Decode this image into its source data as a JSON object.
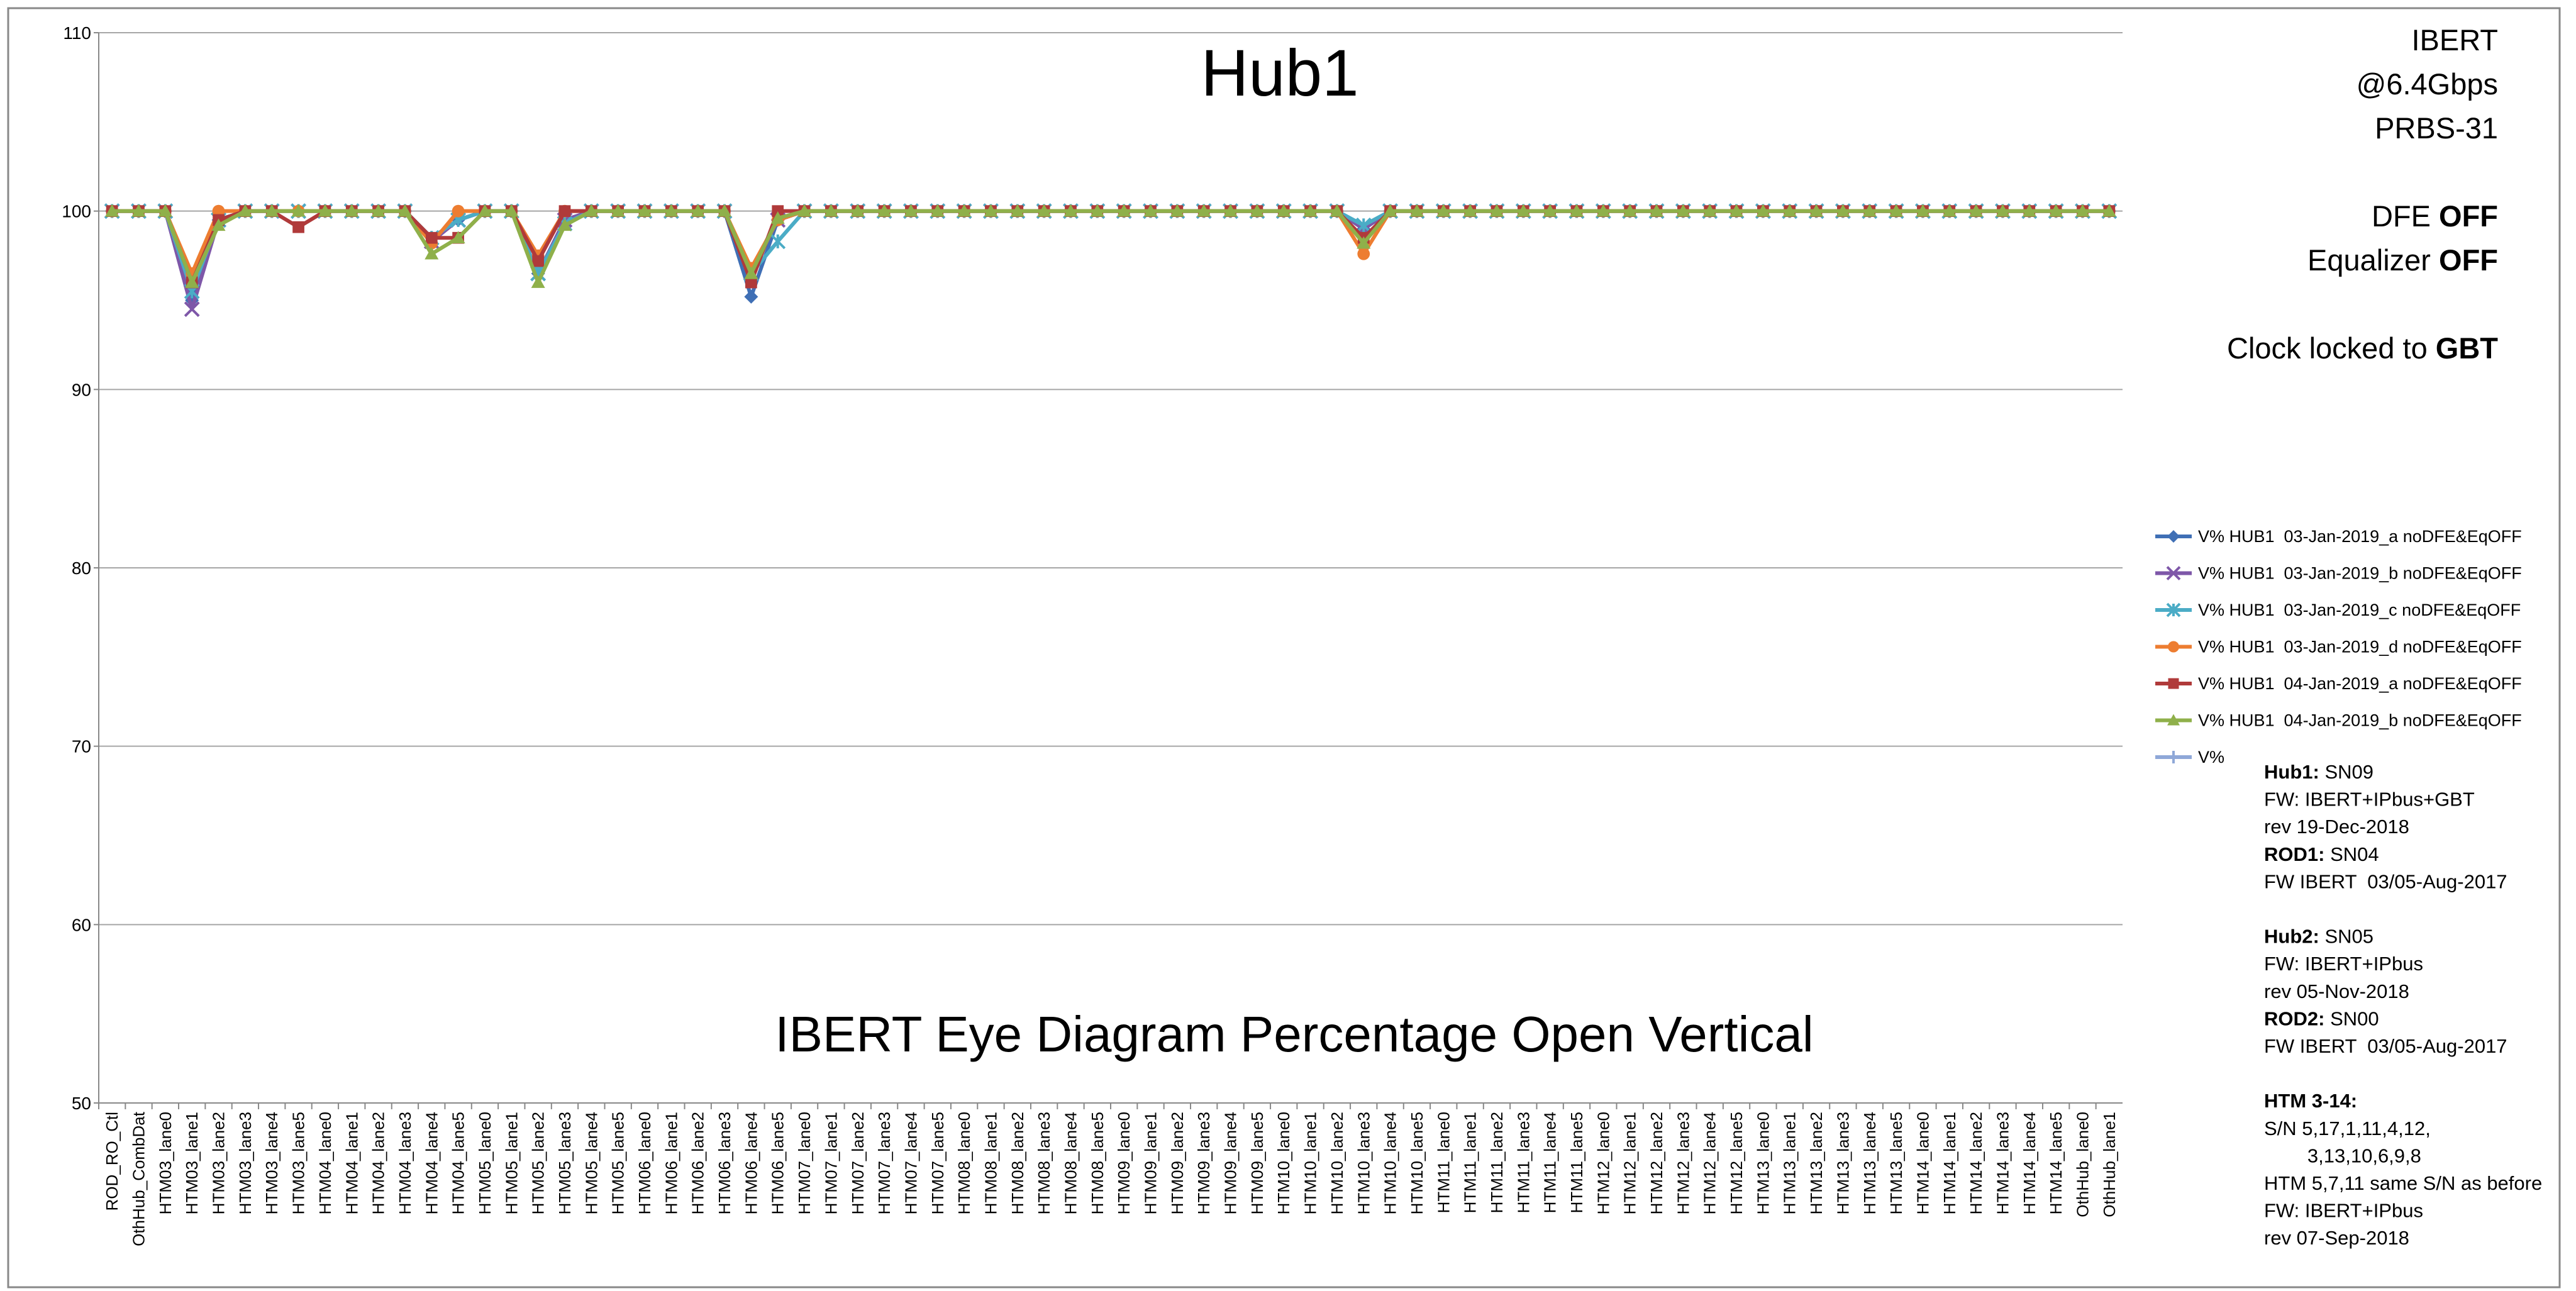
{
  "chart_data": {
    "type": "line",
    "title": "Hub1",
    "x_label": "IBERT Eye Diagram Percentage Open Vertical",
    "categories": [
      "ROD_RO_Ctl",
      "OthHub_CombDat",
      "HTM03_lane0",
      "HTM03_lane1",
      "HTM03_lane2",
      "HTM03_lane3",
      "HTM03_lane4",
      "HTM03_lane5",
      "HTM04_lane0",
      "HTM04_lane1",
      "HTM04_lane2",
      "HTM04_lane3",
      "HTM04_lane4",
      "HTM04_lane5",
      "HTM05_lane0",
      "HTM05_lane1",
      "HTM05_lane2",
      "HTM05_lane3",
      "HTM05_lane4",
      "HTM05_lane5",
      "HTM06_lane0",
      "HTM06_lane1",
      "HTM06_lane2",
      "HTM06_lane3",
      "HTM06_lane4",
      "HTM06_lane5",
      "HTM07_lane0",
      "HTM07_lane1",
      "HTM07_lane2",
      "HTM07_lane3",
      "HTM07_lane4",
      "HTM07_lane5",
      "HTM08_lane0",
      "HTM08_lane1",
      "HTM08_lane2",
      "HTM08_lane3",
      "HTM08_lane4",
      "HTM08_lane5",
      "HTM09_lane0",
      "HTM09_lane1",
      "HTM09_lane2",
      "HTM09_lane3",
      "HTM09_lane4",
      "HTM09_lane5",
      "HTM10_lane0",
      "HTM10_lane1",
      "HTM10_lane2",
      "HTM10_lane3",
      "HTM10_lane4",
      "HTM10_lane5",
      "HTM11_lane0",
      "HTM11_lane1",
      "HTM11_lane2",
      "HTM11_lane3",
      "HTM11_lane4",
      "HTM11_lane5",
      "HTM12_lane0",
      "HTM12_lane1",
      "HTM12_lane2",
      "HTM12_lane3",
      "HTM12_lane4",
      "HTM12_lane5",
      "HTM13_lane0",
      "HTM13_lane1",
      "HTM13_lane2",
      "HTM13_lane3",
      "HTM13_lane4",
      "HTM13_lane5",
      "HTM14_lane0",
      "HTM14_lane1",
      "HTM14_lane2",
      "HTM14_lane3",
      "HTM14_lane4",
      "HTM14_lane5",
      "OthHub_lane0",
      "OthHub_lane1"
    ],
    "series": [
      {
        "name": "V% HUB1  03-Jan-2019_a noDFE&EqOFF",
        "color": "#3f6fb5",
        "marker": "diamond",
        "values": [
          100,
          100,
          100,
          95,
          99.5,
          100,
          100,
          100,
          100,
          100,
          100,
          100,
          98.5,
          99.5,
          100,
          100,
          96.5,
          99.5,
          100,
          100,
          100,
          100,
          100,
          100,
          95.2,
          99.5,
          100,
          100,
          100,
          100,
          100,
          100,
          100,
          100,
          100,
          100,
          100,
          100,
          100,
          100,
          100,
          100,
          100,
          100,
          100,
          100,
          100,
          99,
          100,
          100,
          100,
          100,
          100,
          100,
          100,
          100,
          100,
          100,
          100,
          100,
          100,
          100,
          100,
          100,
          100,
          100,
          100,
          100,
          100,
          100,
          100,
          100,
          100,
          100,
          100,
          100
        ]
      },
      {
        "name": "V% HUB1  03-Jan-2019_b noDFE&EqOFF",
        "color": "#7e57a8",
        "marker": "x",
        "values": [
          100,
          100,
          100,
          94.5,
          99.5,
          100,
          100,
          100,
          100,
          100,
          100,
          100,
          98.3,
          99.5,
          100,
          100,
          96.5,
          99.5,
          100,
          100,
          100,
          100,
          100,
          100,
          96.5,
          99.5,
          100,
          100,
          100,
          100,
          100,
          100,
          100,
          100,
          100,
          100,
          100,
          100,
          100,
          100,
          100,
          100,
          100,
          100,
          100,
          100,
          100,
          99,
          100,
          100,
          100,
          100,
          100,
          100,
          100,
          100,
          100,
          100,
          100,
          100,
          100,
          100,
          100,
          100,
          100,
          100,
          100,
          100,
          100,
          100,
          100,
          100,
          100,
          100,
          100,
          100
        ]
      },
      {
        "name": "V% HUB1  03-Jan-2019_c noDFE&EqOFF",
        "color": "#4bacc6",
        "marker": "star",
        "values": [
          100,
          100,
          100,
          95.5,
          99.5,
          100,
          100,
          100,
          100,
          100,
          100,
          100,
          98.5,
          99.5,
          100,
          100,
          96.5,
          99.3,
          100,
          100,
          100,
          100,
          100,
          100,
          96.5,
          98.3,
          100,
          100,
          100,
          100,
          100,
          100,
          100,
          100,
          100,
          100,
          100,
          100,
          100,
          100,
          100,
          100,
          100,
          100,
          100,
          100,
          100,
          99.2,
          100,
          100,
          100,
          100,
          100,
          100,
          100,
          100,
          100,
          100,
          100,
          100,
          100,
          100,
          100,
          100,
          100,
          100,
          100,
          100,
          100,
          100,
          100,
          100,
          100,
          100,
          100,
          100
        ]
      },
      {
        "name": "V% HUB1  03-Jan-2019_d noDFE&EqOFF",
        "color": "#ed7d31",
        "marker": "circle",
        "values": [
          100,
          100,
          100,
          96.5,
          100,
          100,
          100,
          100,
          100,
          100,
          100,
          100,
          98.2,
          100,
          100,
          100,
          97.5,
          100,
          100,
          100,
          100,
          100,
          100,
          100,
          96.8,
          99.5,
          100,
          100,
          100,
          100,
          100,
          100,
          100,
          100,
          100,
          100,
          100,
          100,
          100,
          100,
          100,
          100,
          100,
          100,
          100,
          100,
          100,
          97.6,
          100,
          100,
          100,
          100,
          100,
          100,
          100,
          100,
          100,
          100,
          100,
          100,
          100,
          100,
          100,
          100,
          100,
          100,
          100,
          100,
          100,
          100,
          100,
          100,
          100,
          100,
          100,
          100
        ]
      },
      {
        "name": "V% HUB1  04-Jan-2019_a noDFE&EqOFF",
        "color": "#b03a3a",
        "marker": "square",
        "values": [
          100,
          100,
          100,
          96,
          99.5,
          100,
          100,
          99.1,
          100,
          100,
          100,
          100,
          98.5,
          98.5,
          100,
          100,
          97.2,
          100,
          100,
          100,
          100,
          100,
          100,
          100,
          96,
          100,
          100,
          100,
          100,
          100,
          100,
          100,
          100,
          100,
          100,
          100,
          100,
          100,
          100,
          100,
          100,
          100,
          100,
          100,
          100,
          100,
          100,
          98.5,
          100,
          100,
          100,
          100,
          100,
          100,
          100,
          100,
          100,
          100,
          100,
          100,
          100,
          100,
          100,
          100,
          100,
          100,
          100,
          100,
          100,
          100,
          100,
          100,
          100,
          100,
          100,
          100
        ]
      },
      {
        "name": "V% HUB1  04-Jan-2019_b noDFE&EqOFF",
        "color": "#8fb04a",
        "marker": "triangle",
        "values": [
          100,
          100,
          100,
          96,
          99.2,
          100,
          100,
          100,
          100,
          100,
          100,
          100,
          97.6,
          98.5,
          100,
          100,
          96,
          99.2,
          100,
          100,
          100,
          100,
          100,
          100,
          96.5,
          99.6,
          100,
          100,
          100,
          100,
          100,
          100,
          100,
          100,
          100,
          100,
          100,
          100,
          100,
          100,
          100,
          100,
          100,
          100,
          100,
          100,
          100,
          98.2,
          100,
          100,
          100,
          100,
          100,
          100,
          100,
          100,
          100,
          100,
          100,
          100,
          100,
          100,
          100,
          100,
          100,
          100,
          100,
          100,
          100,
          100,
          100,
          100,
          100,
          100,
          100,
          100
        ]
      },
      {
        "name": "V%",
        "color": "#8fa8d8",
        "marker": "plus",
        "values": [
          null,
          null,
          null,
          null,
          null,
          null,
          null,
          null,
          null,
          null,
          null,
          null,
          null,
          null,
          null,
          null,
          null,
          null,
          null,
          null,
          null,
          null,
          null,
          null,
          null,
          null,
          null,
          null,
          null,
          null,
          null,
          null,
          null,
          null,
          null,
          null,
          null,
          null,
          null,
          null,
          null,
          null,
          null,
          null,
          null,
          null,
          null,
          null,
          null,
          null,
          null,
          null,
          null,
          null,
          null,
          null,
          null,
          null,
          null,
          null,
          null,
          null,
          null,
          null,
          null,
          null,
          null,
          null,
          null,
          null,
          null,
          null,
          null,
          null,
          null,
          null
        ]
      }
    ],
    "ylim": [
      50,
      110
    ],
    "yticks": [
      50,
      60,
      70,
      80,
      90,
      100,
      110
    ],
    "grid": true,
    "side_text": [
      [
        [
          {
            "text": "IBERT"
          }
        ],
        [
          {
            "text": "@6.4Gbps"
          }
        ],
        [
          {
            "text": "PRBS-31"
          }
        ]
      ],
      [
        [
          {
            "text": "DFE "
          },
          {
            "text": "OFF",
            "bold": true
          }
        ],
        [
          {
            "text": "Equalizer "
          },
          {
            "text": "OFF",
            "bold": true
          }
        ]
      ],
      [
        [
          {
            "text": "Clock locked to "
          },
          {
            "text": "GBT",
            "bold": true
          }
        ]
      ]
    ],
    "notes": [
      [
        [
          {
            "text": "Hub1:",
            "bold": true
          },
          {
            "text": " SN09"
          }
        ],
        [
          {
            "text": "FW: IBERT+IPbus+GBT"
          }
        ],
        [
          {
            "text": "rev 19-Dec-2018"
          }
        ],
        [
          {
            "text": "ROD1:",
            "bold": true
          },
          {
            "text": " SN04"
          }
        ],
        [
          {
            "text": "FW IBERT  03/05-Aug-2017"
          }
        ]
      ],
      [
        [
          {
            "text": "Hub2:",
            "bold": true
          },
          {
            "text": " SN05"
          }
        ],
        [
          {
            "text": "FW: IBERT+IPbus"
          }
        ],
        [
          {
            "text": "rev 05-Nov-2018"
          }
        ],
        [
          {
            "text": "ROD2:",
            "bold": true
          },
          {
            "text": " SN00"
          }
        ],
        [
          {
            "text": "FW IBERT  03/05-Aug-2017"
          }
        ]
      ],
      [
        [
          {
            "text": "HTM 3-14:",
            "bold": true
          }
        ],
        [
          {
            "text": "S/N 5,17,1,11,4,12,"
          }
        ],
        [
          {
            "text": "        3,13,10,6,9,8"
          }
        ],
        [
          {
            "text": "HTM 5,7,11 same S/N as before"
          }
        ],
        [
          {
            "text": "FW: IBERT+IPbus"
          }
        ],
        [
          {
            "text": "rev 07-Sep-2018"
          }
        ]
      ]
    ]
  }
}
